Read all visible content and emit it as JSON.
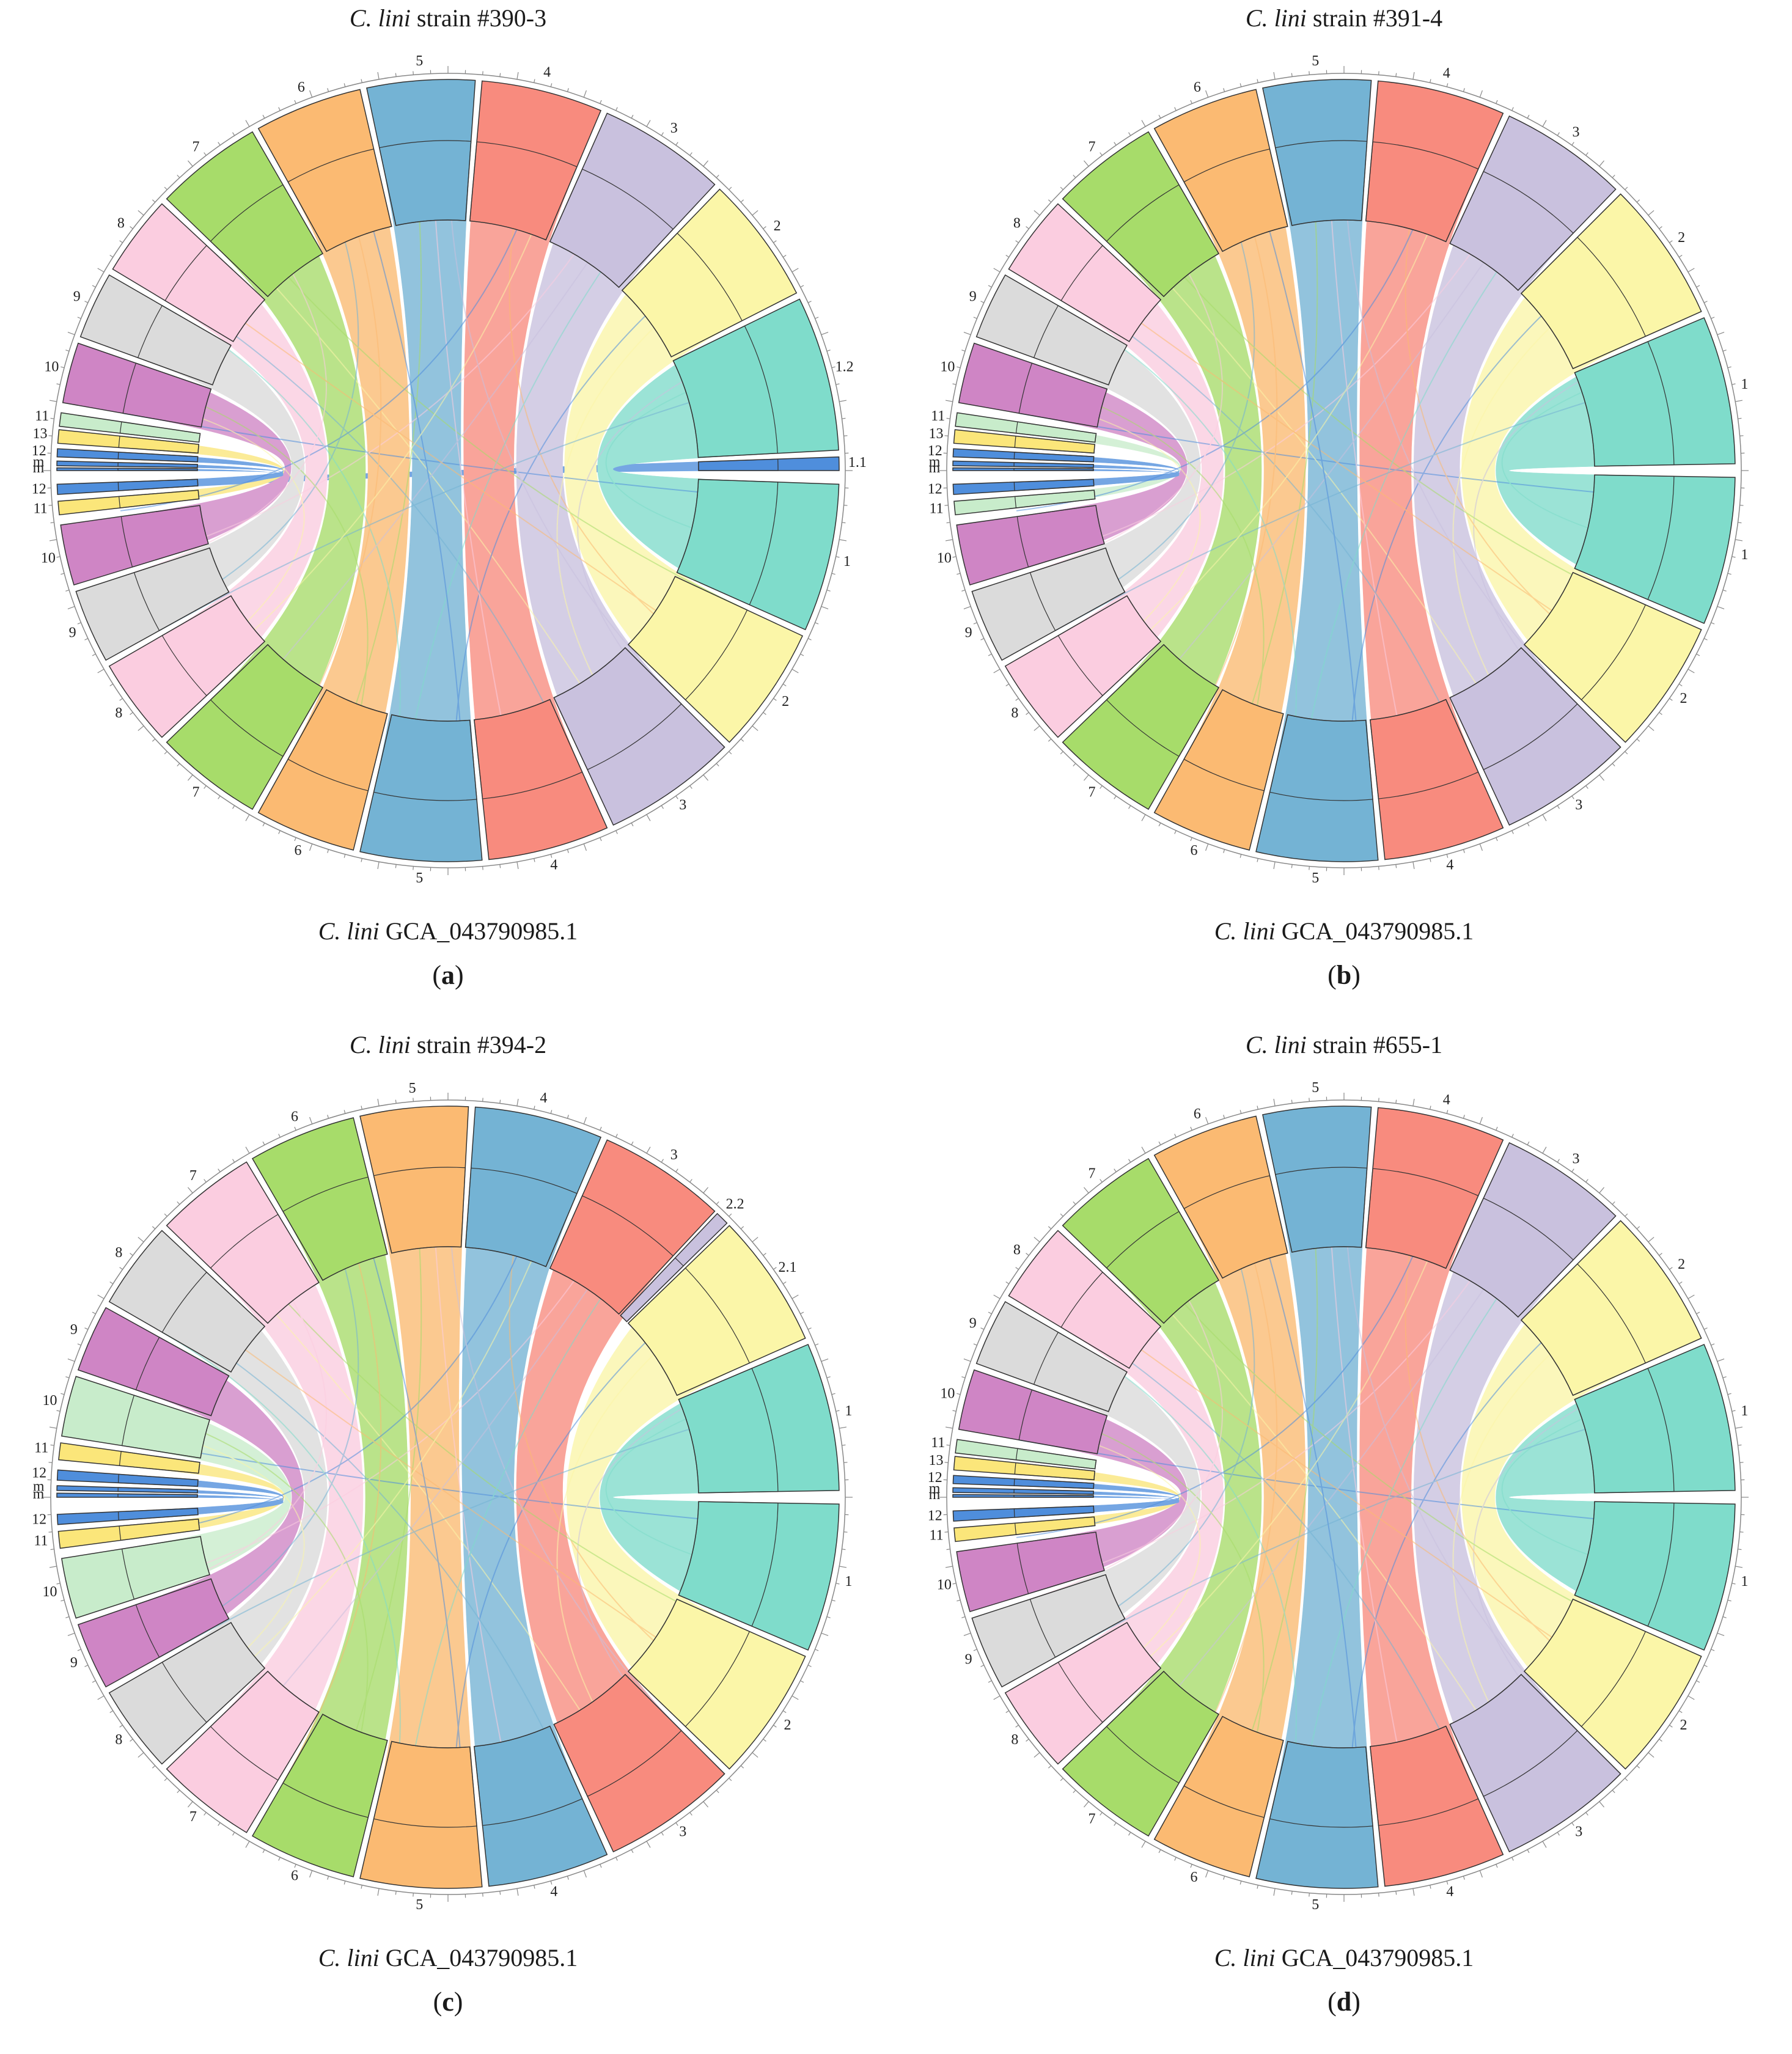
{
  "figure": {
    "bottom_organism": "C. lini",
    "bottom_accession": "GCA_043790985.1",
    "panels": [
      {
        "id": "a",
        "organism": "C. lini",
        "strain_text": "strain #390-3",
        "caption": "a",
        "top_labels": [
          "5",
          "6",
          "4",
          "7",
          "3",
          "8",
          "2",
          "9",
          "1.2",
          "10",
          "1.1",
          "11",
          "13",
          "12",
          "m",
          "m"
        ],
        "bottom_labels": [
          "1",
          "12",
          "11",
          "10",
          "2",
          "9",
          "8",
          "3",
          "7",
          "4",
          "6",
          "5"
        ]
      },
      {
        "id": "b",
        "organism": "C. lini",
        "strain_text": "strain #391-4",
        "caption": "b",
        "top_labels": [
          "5",
          "6",
          "4",
          "7",
          "3",
          "8",
          "2",
          "9",
          "10",
          "1",
          "11",
          "13",
          "12",
          "m",
          "m"
        ],
        "bottom_labels": [
          "12",
          "11",
          "10",
          "1",
          "9",
          "2",
          "8",
          "3",
          "7",
          "4",
          "6",
          "5"
        ]
      },
      {
        "id": "c",
        "organism": "C. lini",
        "strain_text": "strain #394-2",
        "caption": "c",
        "top_labels": [
          "5",
          "6",
          "4",
          "7",
          "3",
          "2.2",
          "8",
          "2.1",
          "9",
          "10",
          "1",
          "11",
          "12",
          "m",
          "m"
        ],
        "bottom_labels": [
          "12",
          "11",
          "10",
          "1",
          "9",
          "2",
          "8",
          "3",
          "7",
          "6",
          "4",
          "5"
        ]
      },
      {
        "id": "d",
        "organism": "C. lini",
        "strain_text": "strain #655-1",
        "caption": "d",
        "top_labels": [
          "5",
          "6",
          "4",
          "7",
          "3",
          "8",
          "2",
          "9",
          "10",
          "1",
          "11",
          "13",
          "12",
          "m",
          "m"
        ],
        "bottom_labels": [
          "12",
          "11",
          "1",
          "10",
          "9",
          "2",
          "8",
          "3",
          "7",
          "6",
          "4",
          "5"
        ]
      }
    ]
  },
  "colors": {
    "teal": "#7fdccb",
    "yellow": "#fbf6a8",
    "lavender": "#c9c1de",
    "red": "#f88b7e",
    "blue": "#74b3d4",
    "orange": "#fbba72",
    "green": "#a7dc6a",
    "pink": "#fbcde0",
    "gray": "#dbdbdb",
    "magenta": "#cf85c5",
    "mint": "#c8eccb",
    "gold": "#fbe67a",
    "deepblue": "#4f8edc"
  }
}
